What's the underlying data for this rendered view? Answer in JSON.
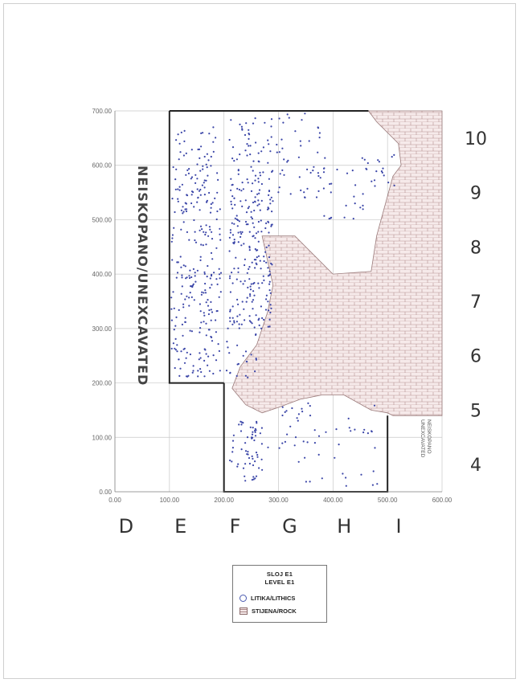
{
  "chart_data": {
    "type": "scatter",
    "title": "SLOJ E1",
    "subtitle": "LEVEL E1",
    "xlim": [
      0,
      600
    ],
    "ylim": [
      0,
      700
    ],
    "x_ticks": [
      "0.00",
      "100.00",
      "200.00",
      "300.00",
      "400.00",
      "500.00",
      "600.00"
    ],
    "y_ticks": [
      "0.00",
      "100.00",
      "200.00",
      "300.00",
      "400.00",
      "500.00",
      "600.00",
      "700.00"
    ],
    "grid": true,
    "column_labels": [
      "D",
      "E",
      "F",
      "G",
      "H",
      "I"
    ],
    "row_labels": [
      "10",
      "9",
      "8",
      "7",
      "6",
      "5",
      "4"
    ],
    "annotations": [
      {
        "text": "NEISKOPANO/UNEXCAVATED",
        "orientation": "vertical",
        "region": "left of excavation"
      },
      {
        "text": "NEISKOPANO UNEXCAVATED",
        "orientation": "vertical",
        "region": "bottom-right"
      }
    ],
    "excavation_boundary": [
      [
        100,
        700
      ],
      [
        465,
        700
      ],
      [
        465,
        660
      ],
      [
        510,
        600
      ],
      [
        515,
        590
      ],
      [
        480,
        470
      ],
      [
        465,
        410
      ],
      [
        400,
        400
      ],
      [
        370,
        430
      ],
      [
        330,
        470
      ],
      [
        300,
        470
      ],
      [
        290,
        450
      ],
      [
        270,
        400
      ],
      [
        250,
        330
      ],
      [
        220,
        270
      ],
      [
        200,
        230
      ],
      [
        200,
        0
      ],
      [
        500,
        0
      ],
      [
        500,
        140
      ],
      [
        470,
        150
      ],
      [
        420,
        175
      ],
      [
        380,
        175
      ],
      [
        350,
        170
      ],
      [
        310,
        160
      ],
      [
        270,
        150
      ],
      [
        210,
        150
      ],
      [
        200,
        160
      ],
      [
        200,
        200
      ],
      [
        100,
        200
      ]
    ],
    "rock_regions": [
      [
        [
          270,
          470
        ],
        [
          330,
          470
        ],
        [
          370,
          430
        ],
        [
          400,
          400
        ],
        [
          470,
          405
        ],
        [
          480,
          470
        ],
        [
          510,
          580
        ],
        [
          525,
          600
        ],
        [
          520,
          640
        ],
        [
          480,
          680
        ],
        [
          465,
          700
        ],
        [
          600,
          700
        ],
        [
          600,
          140
        ],
        [
          510,
          140
        ],
        [
          500,
          145
        ],
        [
          470,
          150
        ],
        [
          420,
          178
        ],
        [
          380,
          178
        ],
        [
          340,
          170
        ],
        [
          300,
          155
        ],
        [
          270,
          145
        ],
        [
          240,
          160
        ],
        [
          215,
          190
        ],
        [
          230,
          230
        ],
        [
          260,
          270
        ],
        [
          280,
          330
        ],
        [
          290,
          380
        ]
      ]
    ],
    "series": [
      {
        "name": "LITIKA/LITHICS",
        "color": "#3b46a8",
        "clusters": [
          {
            "x": [
              103,
              195
            ],
            "y": [
              210,
              600
            ],
            "n": 260
          },
          {
            "x": [
              103,
              190
            ],
            "y": [
              600,
              670
            ],
            "n": 28
          },
          {
            "x": [
              210,
              290
            ],
            "y": [
              300,
              600
            ],
            "n": 230
          },
          {
            "x": [
              210,
              290
            ],
            "y": [
              600,
              690
            ],
            "n": 40
          },
          {
            "x": [
              295,
              380
            ],
            "y": [
              540,
              700
            ],
            "n": 45
          },
          {
            "x": [
              380,
              470
            ],
            "y": [
              500,
              620
            ],
            "n": 30
          },
          {
            "x": [
              470,
              520
            ],
            "y": [
              560,
              620
            ],
            "n": 14
          },
          {
            "x": [
              200,
              260
            ],
            "y": [
              200,
              320
            ],
            "n": 28
          },
          {
            "x": [
              210,
              270
            ],
            "y": [
              20,
              140
            ],
            "n": 60
          },
          {
            "x": [
              280,
              480
            ],
            "y": [
              80,
              170
            ],
            "n": 40
          },
          {
            "x": [
              330,
              490
            ],
            "y": [
              10,
              70
            ],
            "n": 14
          }
        ]
      },
      {
        "name": "STIJENA/ROCK",
        "color": "#9a7070"
      }
    ],
    "legend": {
      "placement": "bottom-center",
      "entries": [
        "LITIKA/LITHICS",
        "STIJENA/ROCK"
      ],
      "title": "SLOJ E1",
      "subtitle": "LEVEL E1"
    }
  }
}
